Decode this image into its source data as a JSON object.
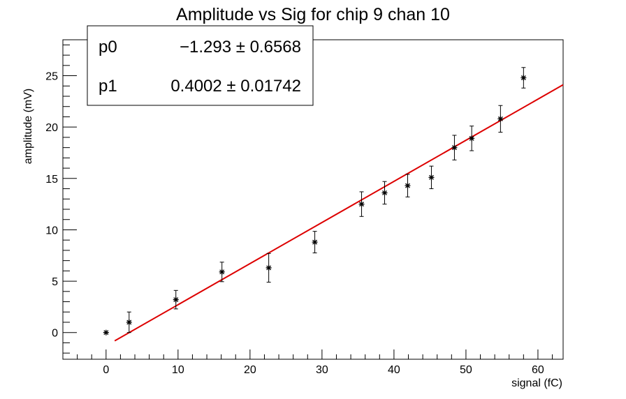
{
  "chart_data": {
    "type": "scatter",
    "title": "Amplitude vs Sig for chip 9 chan 10",
    "xlabel": "signal (fC)",
    "ylabel": "amplitude (mV)",
    "xlim": [
      -6,
      63.5
    ],
    "ylim": [
      -2.6,
      28.5
    ],
    "x_ticks": [
      0,
      10,
      20,
      30,
      40,
      50,
      60
    ],
    "y_ticks": [
      0,
      5,
      10,
      15,
      20,
      25
    ],
    "grid": false,
    "series": [
      {
        "marker": "asterisk",
        "color": "#000000",
        "points": [
          {
            "x": 0.0,
            "y": 0.0,
            "err": 0.0
          },
          {
            "x": 3.2,
            "y": 1.0,
            "err": 1.0
          },
          {
            "x": 9.7,
            "y": 3.2,
            "err": 0.9
          },
          {
            "x": 16.1,
            "y": 5.9,
            "err": 0.95
          },
          {
            "x": 22.6,
            "y": 6.3,
            "err": 1.4
          },
          {
            "x": 29.0,
            "y": 8.8,
            "err": 1.05
          },
          {
            "x": 35.5,
            "y": 12.5,
            "err": 1.2
          },
          {
            "x": 38.7,
            "y": 13.6,
            "err": 1.1
          },
          {
            "x": 41.9,
            "y": 14.3,
            "err": 1.1
          },
          {
            "x": 45.2,
            "y": 15.1,
            "err": 1.1
          },
          {
            "x": 48.4,
            "y": 18.0,
            "err": 1.2
          },
          {
            "x": 50.8,
            "y": 18.9,
            "err": 1.2
          },
          {
            "x": 54.8,
            "y": 20.8,
            "err": 1.3
          },
          {
            "x": 58.0,
            "y": 24.8,
            "err": 1.0
          }
        ]
      }
    ],
    "fit": {
      "color": "#dd0000",
      "p0": -1.293,
      "p1": 0.4002,
      "x_range": [
        1.2,
        63.5
      ]
    },
    "stats_box": {
      "rows": [
        {
          "name": "p0",
          "value": "−1.293 ± 0.6568"
        },
        {
          "name": "p1",
          "value": "0.4002 ± 0.01742"
        }
      ],
      "placement": "top-left"
    }
  }
}
